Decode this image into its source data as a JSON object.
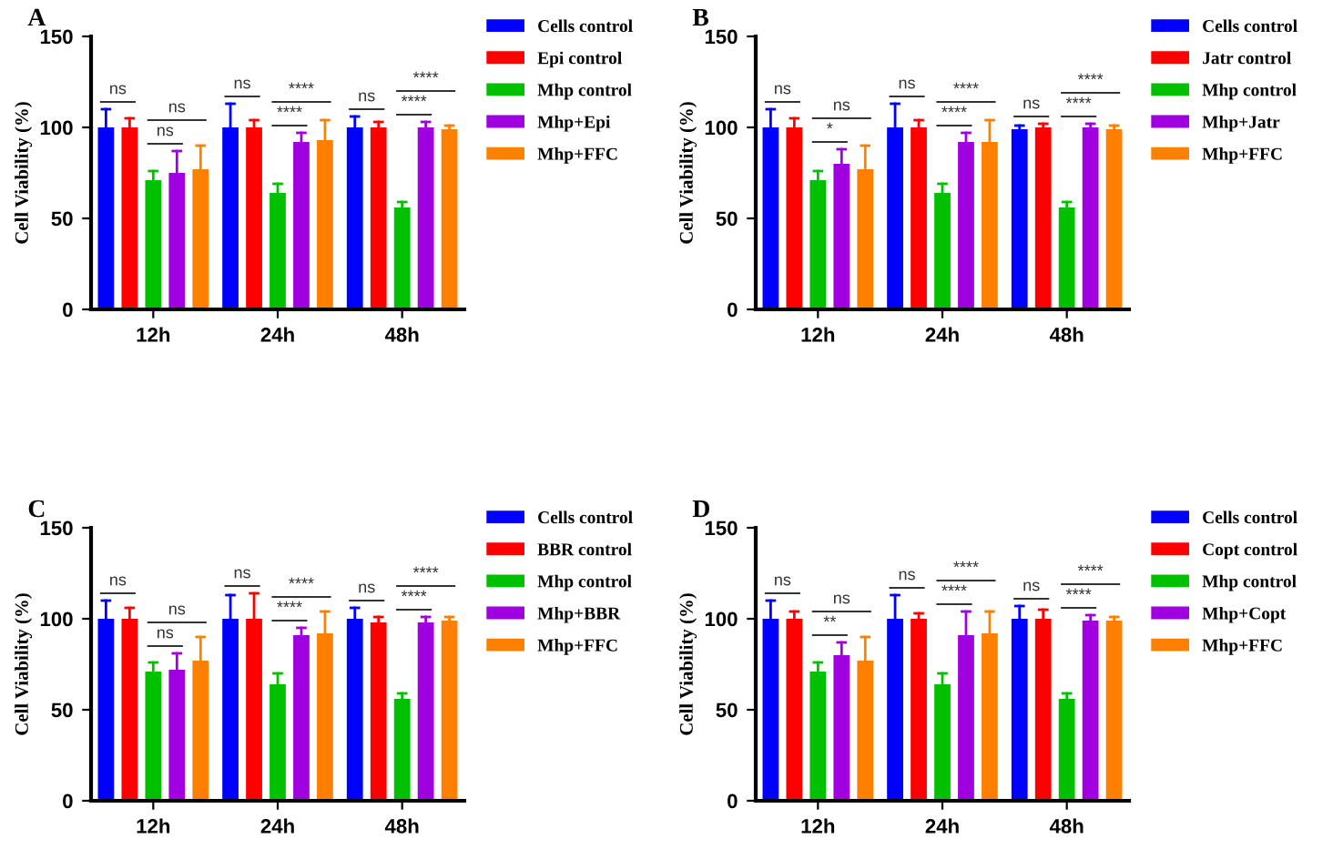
{
  "chart_data": [
    {
      "type": "bar",
      "title": "A",
      "ylabel": "Cell Viability (%)",
      "categories": [
        "12h",
        "24h",
        "48h"
      ],
      "ylim": [
        0,
        150
      ],
      "yticks": [
        0,
        50,
        100,
        150
      ],
      "grid": false,
      "legend": "right",
      "series": [
        {
          "name": "Cells control",
          "color": "#0000ff",
          "values": [
            100,
            100,
            100
          ],
          "errors": [
            [
              100,
              110
            ],
            [
              100,
              113
            ],
            [
              100,
              106
            ]
          ]
        },
        {
          "name": "Epi control",
          "color": "#ff0000",
          "values": [
            100,
            100,
            100
          ],
          "errors": [
            [
              100,
              105
            ],
            [
              100,
              104
            ],
            [
              100,
              103
            ]
          ]
        },
        {
          "name": "Mhp control",
          "color": "#00c000",
          "values": [
            71,
            64,
            56
          ],
          "errors": [
            [
              71,
              76
            ],
            [
              64,
              69
            ],
            [
              56,
              59
            ]
          ]
        },
        {
          "name": "Mhp+Epi",
          "color": "#a000e0",
          "values": [
            75,
            92,
            100
          ],
          "errors": [
            [
              75,
              87
            ],
            [
              92,
              97
            ],
            [
              100,
              103
            ]
          ]
        },
        {
          "name": "Mhp+FFC",
          "color": "#ff8000",
          "values": [
            77,
            93,
            99
          ],
          "errors": [
            [
              77,
              90
            ],
            [
              93,
              104
            ],
            [
              99,
              101
            ]
          ]
        }
      ],
      "annotations": [
        "ns",
        "ns",
        "ns",
        "ns",
        "****",
        "****",
        "ns",
        "****",
        "****"
      ]
    },
    {
      "type": "bar",
      "title": "B",
      "ylabel": "Cell Viability (%)",
      "categories": [
        "12h",
        "24h",
        "48h"
      ],
      "ylim": [
        0,
        150
      ],
      "yticks": [
        0,
        50,
        100,
        150
      ],
      "grid": false,
      "legend": "right",
      "series": [
        {
          "name": "Cells control",
          "color": "#0000ff",
          "values": [
            100,
            100,
            99
          ],
          "errors": [
            [
              100,
              110
            ],
            [
              100,
              113
            ],
            [
              99,
              101
            ]
          ]
        },
        {
          "name": "Jatr control",
          "color": "#ff0000",
          "values": [
            100,
            100,
            100
          ],
          "errors": [
            [
              100,
              105
            ],
            [
              100,
              104
            ],
            [
              100,
              102
            ]
          ]
        },
        {
          "name": "Mhp control",
          "color": "#00c000",
          "values": [
            71,
            64,
            56
          ],
          "errors": [
            [
              71,
              76
            ],
            [
              64,
              69
            ],
            [
              56,
              59
            ]
          ]
        },
        {
          "name": "Mhp+Jatr",
          "color": "#a000e0",
          "values": [
            80,
            92,
            100
          ],
          "errors": [
            [
              80,
              88
            ],
            [
              92,
              97
            ],
            [
              100,
              102
            ]
          ]
        },
        {
          "name": "Mhp+FFC",
          "color": "#ff8000",
          "values": [
            77,
            92,
            99
          ],
          "errors": [
            [
              77,
              90
            ],
            [
              92,
              104
            ],
            [
              99,
              101
            ]
          ]
        }
      ],
      "annotations": [
        "ns",
        "*",
        "ns",
        "ns",
        "****",
        "****",
        "ns",
        "****",
        "****"
      ]
    },
    {
      "type": "bar",
      "title": "C",
      "ylabel": "Cell Viability (%)",
      "categories": [
        "12h",
        "24h",
        "48h"
      ],
      "ylim": [
        0,
        150
      ],
      "yticks": [
        0,
        50,
        100,
        150
      ],
      "grid": false,
      "legend": "right",
      "series": [
        {
          "name": "Cells control",
          "color": "#0000ff",
          "values": [
            100,
            100,
            100
          ],
          "errors": [
            [
              100,
              110
            ],
            [
              100,
              113
            ],
            [
              100,
              106
            ]
          ]
        },
        {
          "name": "BBR control",
          "color": "#ff0000",
          "values": [
            100,
            100,
            98
          ],
          "errors": [
            [
              100,
              106
            ],
            [
              100,
              114
            ],
            [
              98,
              101
            ]
          ]
        },
        {
          "name": "Mhp control",
          "color": "#00c000",
          "values": [
            71,
            64,
            56
          ],
          "errors": [
            [
              71,
              76
            ],
            [
              64,
              70
            ],
            [
              56,
              59
            ]
          ]
        },
        {
          "name": "Mhp+BBR",
          "color": "#a000e0",
          "values": [
            72,
            91,
            98
          ],
          "errors": [
            [
              72,
              81
            ],
            [
              91,
              95
            ],
            [
              98,
              101
            ]
          ]
        },
        {
          "name": "Mhp+FFC",
          "color": "#ff8000",
          "values": [
            77,
            92,
            99
          ],
          "errors": [
            [
              77,
              90
            ],
            [
              92,
              104
            ],
            [
              99,
              101
            ]
          ]
        }
      ],
      "annotations": [
        "ns",
        "ns",
        "ns",
        "ns",
        "****",
        "****",
        "ns",
        "****",
        "****"
      ]
    },
    {
      "type": "bar",
      "title": "D",
      "ylabel": "Cell Viability (%)",
      "categories": [
        "12h",
        "24h",
        "48h"
      ],
      "ylim": [
        0,
        150
      ],
      "yticks": [
        0,
        50,
        100,
        150
      ],
      "grid": false,
      "legend": "right",
      "series": [
        {
          "name": "Cells control",
          "color": "#0000ff",
          "values": [
            100,
            100,
            100
          ],
          "errors": [
            [
              100,
              110
            ],
            [
              100,
              113
            ],
            [
              100,
              107
            ]
          ]
        },
        {
          "name": "Copt control",
          "color": "#ff0000",
          "values": [
            100,
            100,
            100
          ],
          "errors": [
            [
              100,
              104
            ],
            [
              100,
              103
            ],
            [
              100,
              105
            ]
          ]
        },
        {
          "name": "Mhp control",
          "color": "#00c000",
          "values": [
            71,
            64,
            56
          ],
          "errors": [
            [
              71,
              76
            ],
            [
              64,
              70
            ],
            [
              56,
              59
            ]
          ]
        },
        {
          "name": "Mhp+Copt",
          "color": "#a000e0",
          "values": [
            80,
            91,
            99
          ],
          "errors": [
            [
              80,
              87
            ],
            [
              91,
              104
            ],
            [
              99,
              102
            ]
          ]
        },
        {
          "name": "Mhp+FFC",
          "color": "#ff8000",
          "values": [
            77,
            92,
            99
          ],
          "errors": [
            [
              77,
              90
            ],
            [
              92,
              104
            ],
            [
              99,
              101
            ]
          ]
        }
      ],
      "annotations": [
        "ns",
        "**",
        "ns",
        "ns",
        "****",
        "****",
        "ns",
        "****",
        "****"
      ]
    }
  ]
}
